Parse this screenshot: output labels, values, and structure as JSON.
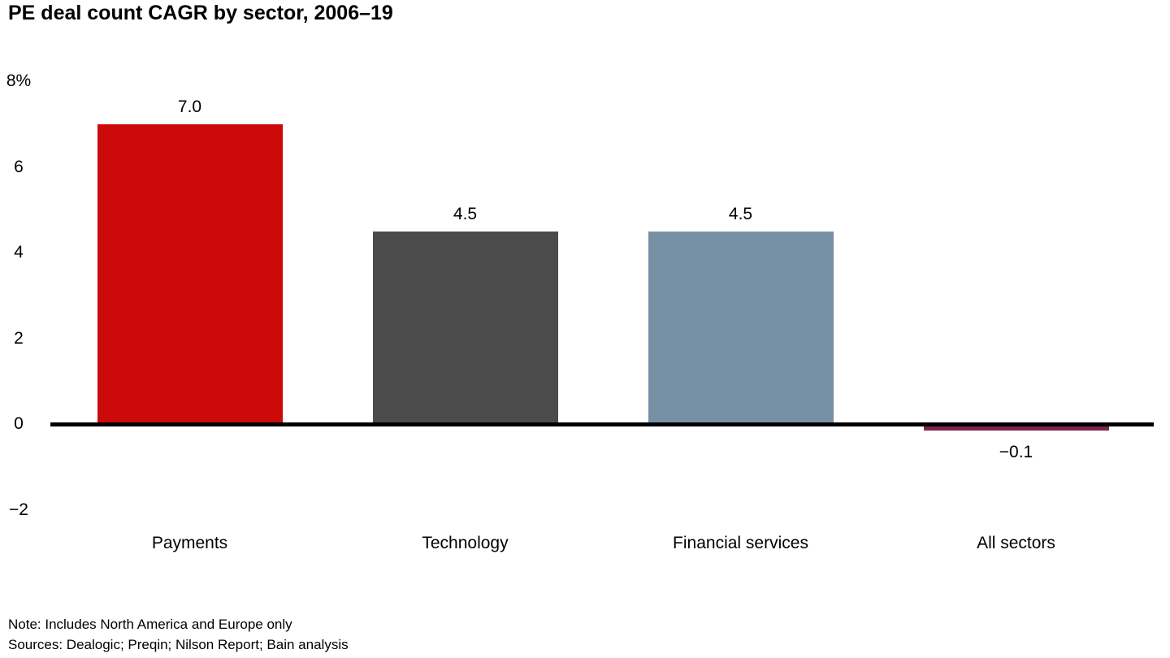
{
  "title": "PE deal count CAGR by sector, 2006–19",
  "footnotes": {
    "note": "Note: Includes North America and Europe only",
    "sources": "Sources: Dealogic; Preqin; Nilson Report; Bain analysis"
  },
  "chart_data": {
    "type": "bar",
    "title": "PE deal count CAGR by sector, 2006–19",
    "categories": [
      "Payments",
      "Technology",
      "Financial services",
      "All sectors"
    ],
    "values": [
      7.0,
      4.5,
      4.5,
      -0.1
    ],
    "value_labels": [
      "7.0",
      "4.5",
      "4.5",
      "−0.1"
    ],
    "bar_colors": [
      "#cc0a0a",
      "#4b4b4b",
      "#7790a6",
      "#7f2352"
    ],
    "xlabel": "",
    "ylabel": "",
    "ylim": [
      -2,
      8
    ],
    "yticks": [
      8,
      6,
      4,
      2,
      0,
      -2
    ],
    "ytick_labels": [
      "8%",
      "6",
      "4",
      "2",
      "0",
      "−2"
    ],
    "grid": false,
    "legend": false,
    "axis_line_color": "#000000"
  }
}
